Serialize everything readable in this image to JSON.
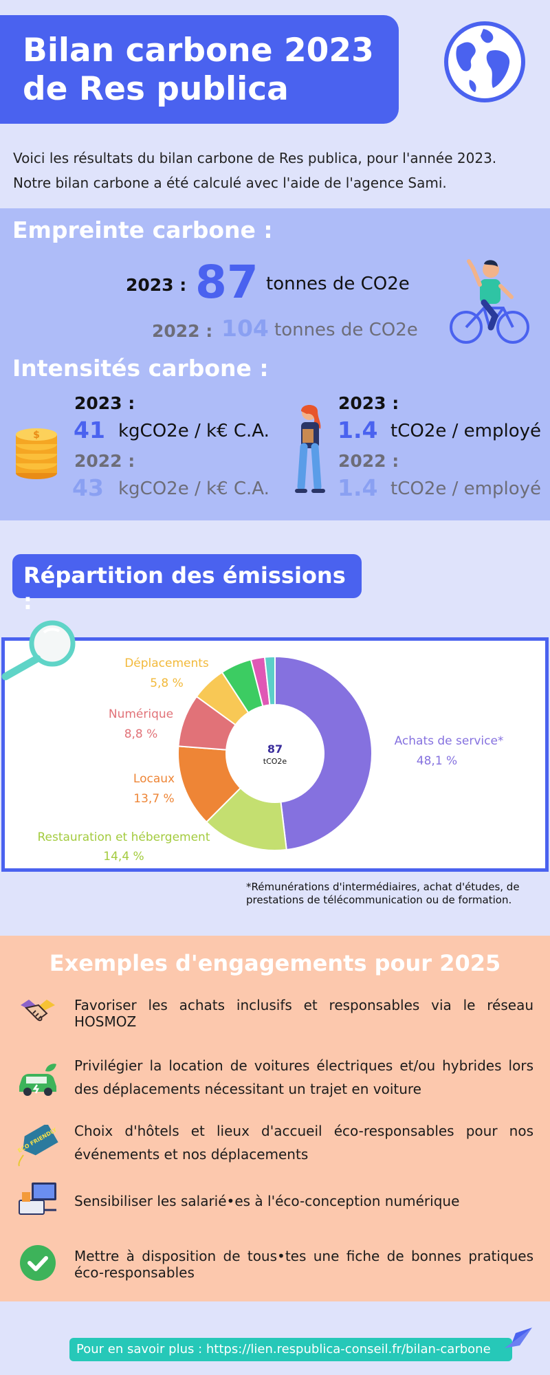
{
  "header": {
    "title_line1": "Bilan carbone 2023",
    "title_line2": "de Res publica"
  },
  "intro": {
    "line1": "Voici les résultats du bilan carbone de Res publica, pour l'année 2023.",
    "line2": "Notre bilan carbone a été calculé avec l'aide de l'agence Sami."
  },
  "footprint": {
    "heading": "Empreinte carbone :",
    "y2023_label": "2023 :",
    "y2023_value": "87",
    "y2023_unit": "tonnes de CO2e",
    "y2022_label": "2022 :",
    "y2022_value": "104",
    "y2022_unit": "tonnes de CO2e"
  },
  "intensity": {
    "heading": "Intensités carbone :",
    "revenue": {
      "y2023_label": "2023 :",
      "y2023_value": "41",
      "y2022_label": "2022 :",
      "y2022_value": "43",
      "unit": "kgCO2e / k€ C.A."
    },
    "employee": {
      "y2023_label": "2023 :",
      "y2023_value": "1.4",
      "y2022_label": "2022 :",
      "y2022_value": "1.4",
      "unit": "tCO2e / employé"
    }
  },
  "repartition": {
    "heading": "Répartition des émissions :",
    "footnote_line1": "*Rémunérations d'intermédiaires, achat d'études, de",
    "footnote_line2": "prestations de télécommunication ou de formation."
  },
  "chart_data": {
    "type": "pie",
    "center_value": "87",
    "center_unit": "tCO2e",
    "slices": [
      {
        "label": "Achats de service*",
        "value_label": "48,1 %",
        "value": 48.1,
        "color": "#8571df"
      },
      {
        "label": "Restauration et hébergement",
        "value_label": "14,4 %",
        "value": 14.4,
        "color": "#c4df70"
      },
      {
        "label": "Locaux",
        "value_label": "13,7 %",
        "value": 13.7,
        "color": "#ee8536"
      },
      {
        "label": "Numérique",
        "value_label": "8,8 %",
        "value": 8.8,
        "color": "#e17278"
      },
      {
        "label": "Déplacements",
        "value_label": "5,8 %",
        "value": 5.8,
        "color": "#f8c855"
      },
      {
        "label": "",
        "value_label": "",
        "value": 5.2,
        "color": "#3ccc62"
      },
      {
        "label": "",
        "value_label": "",
        "value": 2.3,
        "color": "#df58b5"
      },
      {
        "label": "",
        "value_label": "",
        "value": 1.7,
        "color": "#5ccfc8"
      }
    ]
  },
  "engagements": {
    "heading": "Exemples d'engagements pour 2025",
    "items": [
      {
        "text": "Favoriser les achats inclusifs et responsables via le réseau HOSMOZ",
        "icon": "handshake-icon"
      },
      {
        "text": "Privilégier la location de voitures électriques et/ou hybrides lors des déplacements nécessitant un trajet en voiture",
        "icon": "electric-car-icon"
      },
      {
        "text": "Choix d'hôtels et lieux d'accueil éco-responsables pour nos événements et nos déplacements",
        "icon": "eco-tag-icon"
      },
      {
        "text": "Sensibiliser les salarié•es à l'éco-conception numérique",
        "icon": "computer-icon"
      },
      {
        "text": "Mettre à disposition de tous•tes une fiche de bonnes pratiques éco-responsables",
        "icon": "check-icon"
      }
    ],
    "eco_tag_text": "ECO FRIENDLY"
  },
  "footer": {
    "link_text": "Pour en savoir plus : https://lien.respublica-conseil.fr/bilan-carbone"
  }
}
